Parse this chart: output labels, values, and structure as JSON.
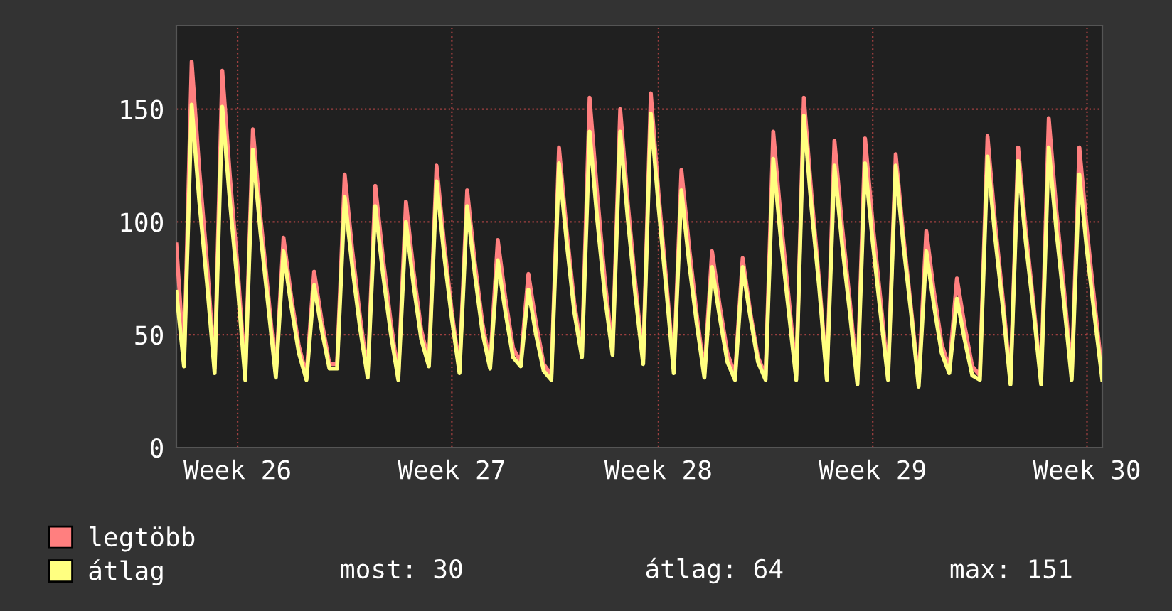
{
  "chart_data": {
    "type": "line",
    "categories": [
      null,
      null,
      null,
      null,
      null,
      null,
      null,
      null,
      "Week 26",
      null,
      null,
      null,
      null,
      null,
      null,
      null,
      null,
      null,
      null,
      null,
      null,
      null,
      null,
      null,
      null,
      null,
      null,
      null,
      null,
      null,
      null,
      null,
      null,
      null,
      null,
      null,
      "Week 27",
      null,
      null,
      null,
      null,
      null,
      null,
      null,
      null,
      null,
      null,
      null,
      null,
      null,
      null,
      null,
      null,
      null,
      null,
      null,
      null,
      null,
      null,
      null,
      null,
      null,
      null,
      "Week 28",
      null,
      null,
      null,
      null,
      null,
      null,
      null,
      null,
      null,
      null,
      null,
      null,
      null,
      null,
      null,
      null,
      null,
      null,
      null,
      null,
      null,
      null,
      null,
      null,
      null,
      null,
      null,
      "Week 29",
      null,
      null,
      null,
      null,
      null,
      null,
      null,
      null,
      null,
      null,
      null,
      null,
      null,
      null,
      null,
      null,
      null,
      null,
      null,
      null,
      null,
      null,
      null,
      null,
      null,
      null,
      null,
      "Week 30",
      null,
      null
    ],
    "series": [
      {
        "name": "legtöbb",
        "color": "#ff7f7f",
        "values": [
          90,
          38,
          171,
          123,
          82,
          35,
          167,
          120,
          80,
          32,
          141,
          102,
          68,
          33,
          93,
          67,
          45,
          32,
          78,
          56,
          37,
          37,
          121,
          87,
          58,
          33,
          116,
          84,
          56,
          32,
          109,
          78,
          52,
          38,
          125,
          90,
          60,
          35,
          114,
          82,
          55,
          37,
          92,
          66,
          44,
          38,
          77,
          55,
          37,
          32,
          133,
          96,
          64,
          42,
          155,
          112,
          74,
          43,
          150,
          108,
          72,
          39,
          157,
          113,
          75,
          35,
          123,
          89,
          59,
          33,
          87,
          63,
          42,
          32,
          84,
          60,
          40,
          32,
          140,
          101,
          67,
          32,
          155,
          112,
          74,
          32,
          136,
          98,
          65,
          30,
          137,
          99,
          66,
          32,
          130,
          94,
          62,
          29,
          96,
          69,
          46,
          35,
          75,
          54,
          36,
          32,
          138,
          99,
          66,
          30,
          133,
          96,
          64,
          30,
          146,
          105,
          70,
          32,
          133,
          96,
          64,
          32
        ]
      },
      {
        "name": "átlag",
        "color": "#ffff80",
        "values": [
          69,
          36,
          152,
          109,
          73,
          33,
          151,
          109,
          72,
          30,
          132,
          95,
          63,
          31,
          87,
          63,
          42,
          30,
          72,
          52,
          35,
          35,
          111,
          80,
          53,
          31,
          107,
          77,
          51,
          30,
          100,
          72,
          48,
          36,
          118,
          85,
          57,
          33,
          107,
          77,
          51,
          35,
          83,
          60,
          40,
          36,
          70,
          50,
          34,
          30,
          126,
          91,
          60,
          40,
          140,
          101,
          67,
          41,
          140,
          101,
          67,
          37,
          148,
          107,
          71,
          33,
          114,
          82,
          55,
          31,
          80,
          58,
          38,
          30,
          80,
          58,
          38,
          30,
          128,
          92,
          61,
          30,
          147,
          106,
          71,
          30,
          125,
          90,
          60,
          28,
          126,
          91,
          60,
          30,
          125,
          90,
          60,
          27,
          87,
          63,
          42,
          33,
          66,
          48,
          32,
          30,
          129,
          93,
          62,
          28,
          127,
          91,
          61,
          28,
          133,
          96,
          64,
          30,
          121,
          87,
          58,
          30
        ]
      }
    ],
    "ylim": [
      0,
      187
    ],
    "yticks": [
      0,
      50,
      100,
      150
    ],
    "grid": true,
    "legend": "bottom",
    "line_style": "solid",
    "marker": "none",
    "annotations": [
      "most: 30",
      "átlag: 64",
      "max: 151"
    ]
  }
}
